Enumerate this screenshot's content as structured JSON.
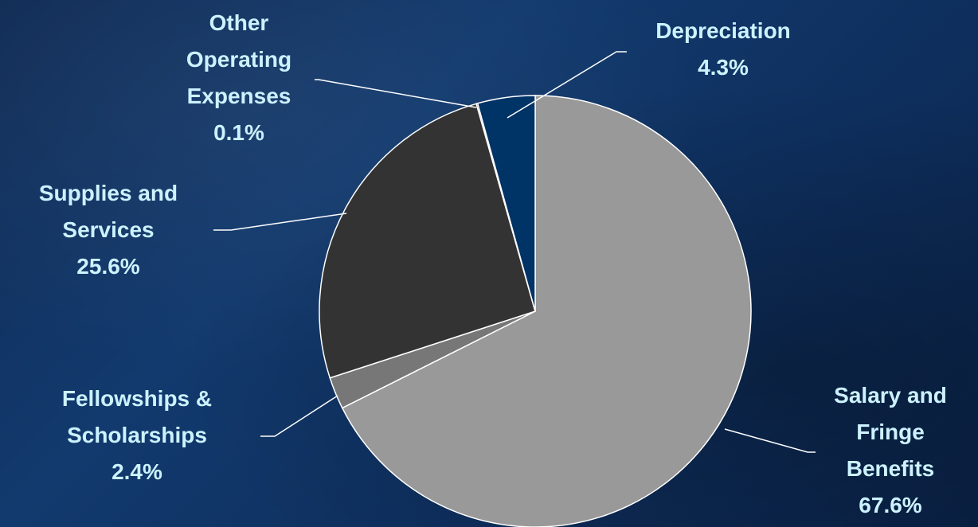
{
  "chart_data": {
    "type": "pie",
    "slices": [
      {
        "label": [
          "Salary and",
          "Fringe",
          "Benefits",
          "67.6%"
        ],
        "value": 67.6,
        "color": "#999999"
      },
      {
        "label": [
          "Fellowships &",
          "Scholarships",
          "2.4%"
        ],
        "value": 2.4,
        "color": "#777777"
      },
      {
        "label": [
          "Supplies and",
          "Services",
          "25.6%"
        ],
        "value": 25.6,
        "color": "#333333"
      },
      {
        "label": [
          "Other",
          "Operating",
          "Expenses",
          "0.1%"
        ],
        "value": 0.1,
        "color": "#000000"
      },
      {
        "label": [
          "Depreciation",
          "4.3%"
        ],
        "value": 4.3,
        "color": "#003366"
      }
    ],
    "label_color": "#ccf2ff"
  }
}
